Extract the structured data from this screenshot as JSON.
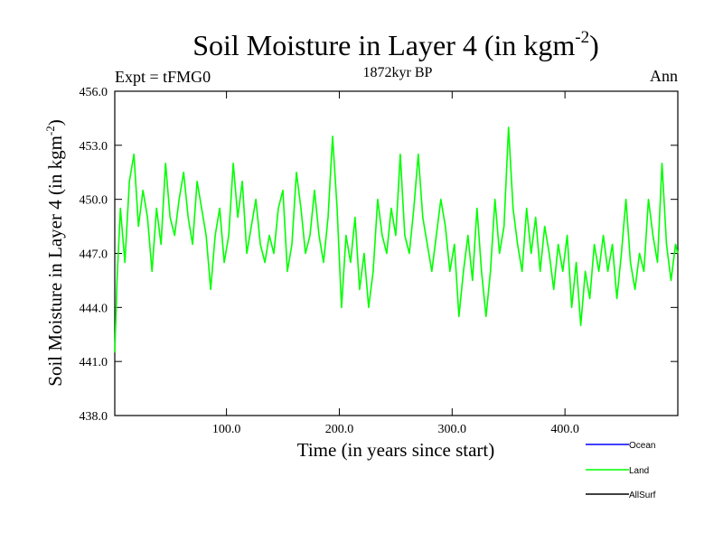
{
  "header": {
    "title_main": "Soil Moisture in Layer 4 (in kgm",
    "title_sup": "-2",
    "title_close": ")",
    "expt": "Expt = tFMG0",
    "period": "1872kyr BP",
    "season": "Ann"
  },
  "chart_data": {
    "type": "line",
    "title": "Soil Moisture in Layer 4 (in kgm-2)",
    "xlabel": "Time (in years since start)",
    "ylabel_main": "Soil Moisture in Layer 4 (in kgm",
    "ylabel_sup": "-2",
    "ylabel_close": ")",
    "xlim": [
      1,
      500
    ],
    "ylim": [
      438.0,
      456.0
    ],
    "xticks": [
      100,
      200,
      300,
      400
    ],
    "xtick_labels": [
      "100.0",
      "200.0",
      "300.0",
      "400.0"
    ],
    "yticks": [
      438,
      441,
      444,
      447,
      450,
      453,
      456
    ],
    "ytick_labels": [
      "438.0",
      "441.0",
      "444.0",
      "447.0",
      "450.0",
      "453.0",
      "456.0"
    ],
    "legend_position": "bottom-right",
    "legend": [
      {
        "name": "Ocean",
        "color": "#0000ff"
      },
      {
        "name": "Land",
        "color": "#00ff00"
      },
      {
        "name": "AllSurf",
        "color": "#000000"
      }
    ],
    "series": [
      {
        "name": "Land",
        "color": "#00ff00",
        "x": [
          1,
          3,
          6,
          10,
          14,
          18,
          22,
          26,
          30,
          34,
          38,
          42,
          46,
          50,
          54,
          58,
          62,
          66,
          70,
          74,
          78,
          82,
          86,
          90,
          94,
          98,
          102,
          106,
          110,
          114,
          118,
          122,
          126,
          130,
          134,
          138,
          142,
          146,
          150,
          154,
          158,
          162,
          166,
          170,
          174,
          178,
          182,
          186,
          190,
          194,
          198,
          202,
          206,
          210,
          214,
          218,
          222,
          226,
          230,
          234,
          238,
          242,
          246,
          250,
          254,
          258,
          262,
          266,
          270,
          274,
          278,
          282,
          286,
          290,
          294,
          298,
          302,
          306,
          310,
          314,
          318,
          322,
          326,
          330,
          334,
          338,
          342,
          346,
          350,
          354,
          358,
          362,
          366,
          370,
          374,
          378,
          382,
          386,
          390,
          394,
          398,
          402,
          406,
          410,
          414,
          418,
          422,
          426,
          430,
          434,
          438,
          442,
          446,
          450,
          454,
          458,
          462,
          466,
          470,
          474,
          478,
          482,
          486,
          490,
          494,
          498,
          500
        ],
        "values": [
          441.5,
          445.5,
          449.5,
          446.5,
          451.0,
          452.5,
          448.5,
          450.5,
          449.0,
          446.0,
          449.5,
          447.5,
          452.0,
          449.0,
          448.0,
          450.0,
          451.5,
          449.0,
          447.5,
          451.0,
          449.5,
          448.0,
          445.0,
          448.0,
          449.5,
          446.5,
          448.0,
          452.0,
          449.0,
          451.0,
          447.0,
          448.5,
          450.0,
          447.5,
          446.5,
          448.0,
          447.0,
          449.5,
          450.5,
          446.0,
          447.5,
          451.5,
          449.5,
          447.0,
          448.0,
          450.5,
          448.0,
          446.5,
          449.0,
          453.5,
          449.5,
          444.0,
          448.0,
          446.5,
          449.0,
          445.0,
          447.0,
          444.0,
          446.0,
          450.0,
          448.0,
          447.0,
          449.5,
          448.0,
          452.5,
          448.0,
          447.0,
          449.5,
          452.5,
          449.0,
          447.5,
          446.0,
          448.0,
          450.0,
          448.5,
          446.0,
          447.5,
          443.5,
          446.0,
          448.0,
          445.5,
          449.5,
          446.0,
          443.5,
          446.0,
          450.0,
          447.0,
          448.5,
          454.0,
          449.5,
          447.5,
          446.0,
          449.5,
          447.0,
          449.0,
          446.0,
          448.5,
          447.0,
          445.0,
          447.5,
          446.0,
          448.0,
          444.0,
          446.5,
          443.0,
          446.0,
          444.5,
          447.5,
          446.0,
          448.0,
          446.0,
          447.5,
          444.5,
          447.0,
          450.0,
          446.5,
          445.0,
          447.0,
          446.0,
          450.0,
          448.0,
          446.5,
          452.0,
          447.5,
          445.5,
          447.5,
          447.0
        ]
      }
    ]
  }
}
